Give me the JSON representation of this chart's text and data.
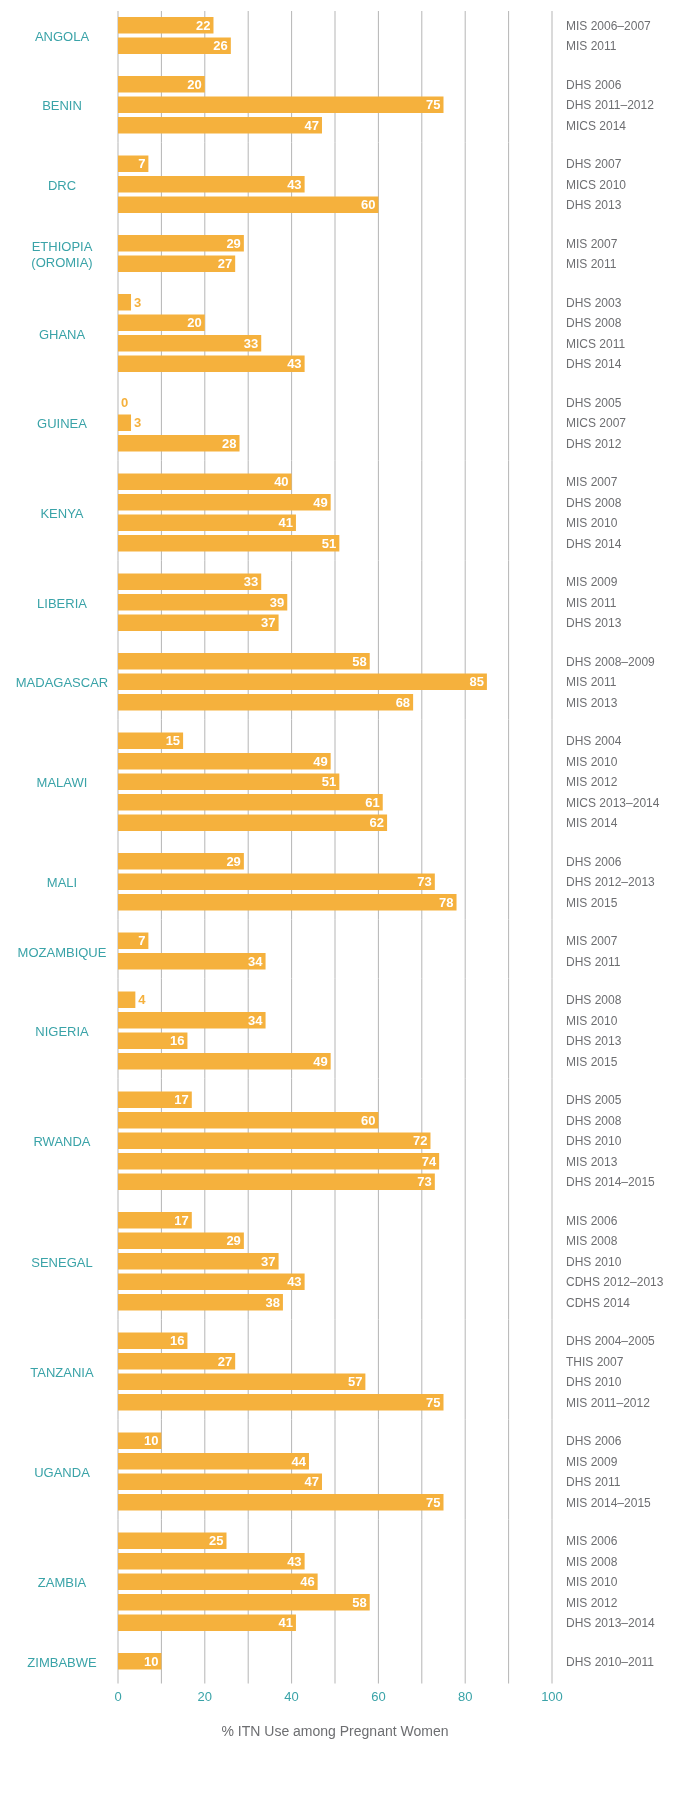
{
  "chart_data": [
    {
      "type": "bar",
      "orientation": "horizontal",
      "title": "ANGOLA",
      "categories": [
        "MIS 2006–2007",
        "MIS 2011"
      ],
      "values": [
        22,
        26
      ],
      "color": "#f5b13d",
      "data_labels": true,
      "xlim": [
        0,
        100
      ],
      "xticks": [
        0,
        {
          "value": 10,
          "label": null
        },
        20,
        {
          "value": 30,
          "label": null
        },
        40,
        {
          "value": 50,
          "label": null
        },
        60,
        {
          "value": 70,
          "label": null
        },
        80,
        {
          "value": 90,
          "label": null
        },
        100
      ],
      "grid": "x",
      "tick_labels": "y"
    },
    {
      "type": "bar",
      "orientation": "horizontal",
      "title": "BENIN",
      "categories": [
        "DHS 2006",
        "DHS 2011–2012",
        "MICS 2014"
      ],
      "values": [
        20,
        75,
        47
      ],
      "color": "#f5b13d",
      "data_labels": true,
      "xlim": [
        0,
        100
      ],
      "xticks": [
        0,
        {
          "value": 10,
          "label": null
        },
        20,
        {
          "value": 30,
          "label": null
        },
        40,
        {
          "value": 50,
          "label": null
        },
        60,
        {
          "value": 70,
          "label": null
        },
        80,
        {
          "value": 90,
          "label": null
        },
        100
      ],
      "grid": "x",
      "tick_labels": "y"
    },
    {
      "type": "bar",
      "orientation": "horizontal",
      "title": "DRC",
      "categories": [
        "DHS 2007",
        "MICS 2010",
        "DHS 2013"
      ],
      "values": [
        7,
        43,
        60
      ],
      "color": "#f5b13d",
      "data_labels": true,
      "xlim": [
        0,
        100
      ],
      "xticks": [
        0,
        {
          "value": 10,
          "label": null
        },
        20,
        {
          "value": 30,
          "label": null
        },
        40,
        {
          "value": 50,
          "label": null
        },
        60,
        {
          "value": 70,
          "label": null
        },
        80,
        {
          "value": 90,
          "label": null
        },
        100
      ],
      "grid": "x",
      "tick_labels": "y"
    },
    {
      "type": "bar",
      "orientation": "horizontal",
      "title": "ETHIOPIA (OROMIA)",
      "categories": [
        "MIS 2007",
        "MIS 2011"
      ],
      "values": [
        29,
        27
      ],
      "color": "#f5b13d",
      "data_labels": true,
      "xlim": [
        0,
        100
      ],
      "xticks": [
        0,
        {
          "value": 10,
          "label": null
        },
        20,
        {
          "value": 30,
          "label": null
        },
        40,
        {
          "value": 50,
          "label": null
        },
        60,
        {
          "value": 70,
          "label": null
        },
        80,
        {
          "value": 90,
          "label": null
        },
        100
      ],
      "grid": "x",
      "tick_labels": "y"
    },
    {
      "type": "bar",
      "orientation": "horizontal",
      "title": "GHANA",
      "categories": [
        "DHS 2003",
        "DHS 2008",
        "MICS 2011",
        "DHS 2014"
      ],
      "values": [
        3,
        20,
        33,
        43
      ],
      "color": "#f5b13d",
      "data_labels": true,
      "xlim": [
        0,
        100
      ],
      "xticks": [
        0,
        {
          "value": 10,
          "label": null
        },
        20,
        {
          "value": 30,
          "label": null
        },
        40,
        {
          "value": 50,
          "label": null
        },
        60,
        {
          "value": 70,
          "label": null
        },
        80,
        {
          "value": 90,
          "label": null
        },
        100
      ],
      "grid": "x",
      "tick_labels": "y"
    },
    {
      "type": "bar",
      "orientation": "horizontal",
      "title": "GUINEA",
      "categories": [
        "DHS 2005",
        "MICS 2007",
        "DHS 2012"
      ],
      "values": [
        0,
        3,
        28
      ],
      "color": "#f5b13d",
      "data_labels": true,
      "xlim": [
        0,
        100
      ],
      "xticks": [
        0,
        {
          "value": 10,
          "label": null
        },
        20,
        {
          "value": 30,
          "label": null
        },
        40,
        {
          "value": 50,
          "label": null
        },
        60,
        {
          "value": 70,
          "label": null
        },
        80,
        {
          "value": 90,
          "label": null
        },
        100
      ],
      "grid": "x",
      "tick_labels": "y"
    },
    {
      "type": "bar",
      "orientation": "horizontal",
      "title": "KENYA",
      "categories": [
        "MIS 2007",
        "DHS 2008",
        "MIS 2010",
        "DHS 2014"
      ],
      "values": [
        40,
        49,
        41,
        51
      ],
      "color": "#f5b13d",
      "data_labels": true,
      "xlim": [
        0,
        100
      ],
      "xticks": [
        0,
        {
          "value": 10,
          "label": null
        },
        20,
        {
          "value": 30,
          "label": null
        },
        40,
        {
          "value": 50,
          "label": null
        },
        60,
        {
          "value": 70,
          "label": null
        },
        80,
        {
          "value": 90,
          "label": null
        },
        100
      ],
      "grid": "x",
      "tick_labels": "y"
    },
    {
      "type": "bar",
      "orientation": "horizontal",
      "title": "LIBERIA",
      "categories": [
        "MIS 2009",
        "MIS 2011",
        "DHS 2013"
      ],
      "values": [
        33,
        39,
        37
      ],
      "color": "#f5b13d",
      "data_labels": true,
      "xlim": [
        0,
        100
      ],
      "xticks": [
        0,
        {
          "value": 10,
          "label": null
        },
        20,
        {
          "value": 30,
          "label": null
        },
        40,
        {
          "value": 50,
          "label": null
        },
        60,
        {
          "value": 70,
          "label": null
        },
        80,
        {
          "value": 90,
          "label": null
        },
        100
      ],
      "grid": "x",
      "tick_labels": "y"
    },
    {
      "type": "bar",
      "orientation": "horizontal",
      "title": "MADAGASCAR",
      "categories": [
        "DHS 2008–2009",
        "MIS 2011",
        "MIS 2013"
      ],
      "values": [
        58,
        85,
        68
      ],
      "color": "#f5b13d",
      "data_labels": true,
      "xlim": [
        0,
        100
      ],
      "xticks": [
        0,
        {
          "value": 10,
          "label": null
        },
        20,
        {
          "value": 30,
          "label": null
        },
        40,
        {
          "value": 50,
          "label": null
        },
        60,
        {
          "value": 70,
          "label": null
        },
        80,
        {
          "value": 90,
          "label": null
        },
        100
      ],
      "grid": "x",
      "tick_labels": "y"
    },
    {
      "type": "bar",
      "orientation": "horizontal",
      "title": "MALAWI",
      "categories": [
        "DHS 2004",
        "MIS 2010",
        "MIS 2012",
        "MICS 2013–2014",
        "MIS 2014"
      ],
      "values": [
        15,
        49,
        51,
        61,
        62
      ],
      "color": "#f5b13d",
      "data_labels": true,
      "xlim": [
        0,
        100
      ],
      "xticks": [
        0,
        {
          "value": 10,
          "label": null
        },
        20,
        {
          "value": 30,
          "label": null
        },
        40,
        {
          "value": 50,
          "label": null
        },
        60,
        {
          "value": 70,
          "label": null
        },
        80,
        {
          "value": 90,
          "label": null
        },
        100
      ],
      "grid": "x",
      "tick_labels": "y"
    },
    {
      "type": "bar",
      "orientation": "horizontal",
      "title": "MALI",
      "categories": [
        "DHS 2006",
        "DHS 2012–2013",
        "MIS 2015"
      ],
      "values": [
        29,
        73,
        78
      ],
      "color": "#f5b13d",
      "data_labels": true,
      "xlim": [
        0,
        100
      ],
      "xticks": [
        0,
        {
          "value": 10,
          "label": null
        },
        20,
        {
          "value": 30,
          "label": null
        },
        40,
        {
          "value": 50,
          "label": null
        },
        60,
        {
          "value": 70,
          "label": null
        },
        80,
        {
          "value": 90,
          "label": null
        },
        100
      ],
      "grid": "x",
      "tick_labels": "y"
    },
    {
      "type": "bar",
      "orientation": "horizontal",
      "title": "MOZAMBIQUE",
      "categories": [
        "MIS 2007",
        "DHS 2011"
      ],
      "values": [
        7,
        34
      ],
      "color": "#f5b13d",
      "data_labels": true,
      "xlim": [
        0,
        100
      ],
      "xticks": [
        0,
        {
          "value": 10,
          "label": null
        },
        20,
        {
          "value": 30,
          "label": null
        },
        40,
        {
          "value": 50,
          "label": null
        },
        60,
        {
          "value": 70,
          "label": null
        },
        80,
        {
          "value": 90,
          "label": null
        },
        100
      ],
      "grid": "x",
      "tick_labels": "y"
    },
    {
      "type": "bar",
      "orientation": "horizontal",
      "title": "NIGERIA",
      "categories": [
        "DHS 2008",
        "MIS 2010",
        "DHS 2013",
        "MIS 2015"
      ],
      "values": [
        4,
        34,
        16,
        49
      ],
      "color": "#f5b13d",
      "data_labels": true,
      "xlim": [
        0,
        100
      ],
      "xticks": [
        0,
        {
          "value": 10,
          "label": null
        },
        20,
        {
          "value": 30,
          "label": null
        },
        40,
        {
          "value": 50,
          "label": null
        },
        60,
        {
          "value": 70,
          "label": null
        },
        80,
        {
          "value": 90,
          "label": null
        },
        100
      ],
      "grid": "x",
      "tick_labels": "y"
    },
    {
      "type": "bar",
      "orientation": "horizontal",
      "title": "RWANDA",
      "categories": [
        "DHS 2005",
        "DHS 2008",
        "DHS 2010",
        "MIS 2013",
        "DHS 2014–2015"
      ],
      "values": [
        17,
        60,
        72,
        74,
        73
      ],
      "color": "#f5b13d",
      "data_labels": true,
      "xlim": [
        0,
        100
      ],
      "xticks": [
        0,
        {
          "value": 10,
          "label": null
        },
        20,
        {
          "value": 30,
          "label": null
        },
        40,
        {
          "value": 50,
          "label": null
        },
        60,
        {
          "value": 70,
          "label": null
        },
        80,
        {
          "value": 90,
          "label": null
        },
        100
      ],
      "grid": "x",
      "tick_labels": "y"
    },
    {
      "type": "bar",
      "orientation": "horizontal",
      "title": "SENEGAL",
      "categories": [
        "MIS 2006",
        "MIS 2008",
        "DHS 2010",
        "CDHS 2012–2013",
        "CDHS 2014"
      ],
      "values": [
        17,
        29,
        37,
        43,
        38
      ],
      "color": "#f5b13d",
      "data_labels": true,
      "xlim": [
        0,
        100
      ],
      "xticks": [
        0,
        {
          "value": 10,
          "label": null
        },
        20,
        {
          "value": 30,
          "label": null
        },
        40,
        {
          "value": 50,
          "label": null
        },
        60,
        {
          "value": 70,
          "label": null
        },
        80,
        {
          "value": 90,
          "label": null
        },
        100
      ],
      "grid": "x",
      "tick_labels": "y"
    },
    {
      "type": "bar",
      "orientation": "horizontal",
      "title": "TANZANIA",
      "categories": [
        "DHS 2004–2005",
        "THIS 2007",
        "DHS 2010",
        "MIS 2011–2012"
      ],
      "values": [
        16,
        27,
        57,
        75
      ],
      "color": "#f5b13d",
      "data_labels": true,
      "xlim": [
        0,
        100
      ],
      "xticks": [
        0,
        {
          "value": 10,
          "label": null
        },
        20,
        {
          "value": 30,
          "label": null
        },
        40,
        {
          "value": 50,
          "label": null
        },
        60,
        {
          "value": 70,
          "label": null
        },
        80,
        {
          "value": 90,
          "label": null
        },
        100
      ],
      "grid": "x",
      "tick_labels": "y"
    },
    {
      "type": "bar",
      "orientation": "horizontal",
      "title": "UGANDA",
      "categories": [
        "DHS 2006",
        "MIS 2009",
        "DHS 2011",
        "MIS 2014–2015"
      ],
      "values": [
        10,
        44,
        47,
        75
      ],
      "color": "#f5b13d",
      "data_labels": true,
      "xlim": [
        0,
        100
      ],
      "xticks": [
        0,
        {
          "value": 10,
          "label": null
        },
        20,
        {
          "value": 30,
          "label": null
        },
        40,
        {
          "value": 50,
          "label": null
        },
        60,
        {
          "value": 70,
          "label": null
        },
        80,
        {
          "value": 90,
          "label": null
        },
        100
      ],
      "grid": "x",
      "tick_labels": "y"
    },
    {
      "type": "bar",
      "orientation": "horizontal",
      "title": "ZAMBIA",
      "categories": [
        "MIS 2006",
        "MIS 2008",
        "MIS 2010",
        "MIS 2012",
        "DHS 2013–2014"
      ],
      "values": [
        25,
        43,
        46,
        58,
        41
      ],
      "color": "#f5b13d",
      "data_labels": true,
      "xlim": [
        0,
        100
      ],
      "xticks": [
        0,
        {
          "value": 10,
          "label": null
        },
        20,
        {
          "value": 30,
          "label": null
        },
        40,
        {
          "value": 50,
          "label": null
        },
        60,
        {
          "value": 70,
          "label": null
        },
        80,
        {
          "value": 90,
          "label": null
        },
        100
      ],
      "grid": "x",
      "tick_labels": "y"
    },
    {
      "type": "bar",
      "orientation": "horizontal",
      "title": "ZIMBABWE",
      "categories": [
        "DHS 2010–2011"
      ],
      "values": [
        10
      ],
      "color": "#f5b13d",
      "data_labels": true,
      "xlim": [
        0,
        100
      ],
      "xticks": [
        0,
        {
          "value": 10,
          "label": null
        },
        20,
        {
          "value": 30,
          "label": null
        },
        40,
        {
          "value": 50,
          "label": null
        },
        60,
        {
          "value": 70,
          "label": null
        },
        80,
        {
          "value": 90,
          "label": null
        },
        100
      ],
      "grid": "x",
      "xlabel": "% ITN Use among Pregnant Women"
    }
  ]
}
